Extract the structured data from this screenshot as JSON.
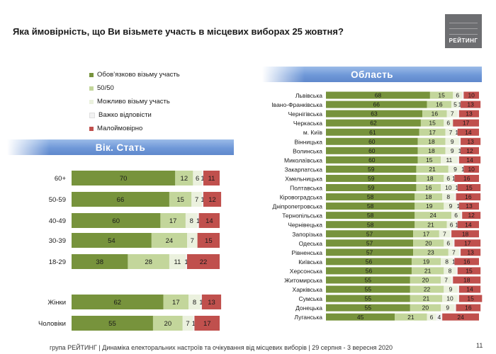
{
  "title": "Яка ймовірність, що Ви візьмете участь в місцевих виборах 25 жовтня?",
  "logo_text": "РЕЙТИНГ",
  "banner_left": "Вік. Стать",
  "banner_right": "Область",
  "footer": "група РЕЙТИНГ | Динаміка електоральних настроїв та очікування від місцевих виборів | 29 серпня - 3 вересня 2020",
  "page_number": "11",
  "colors": {
    "definitely": "#77933c",
    "fifty_fifty": "#c3d69b",
    "maybe": "#ebf1de",
    "hard_to_say": "#f2f2f2",
    "unlikely": "#c0504d"
  },
  "chart_data": [
    {
      "type": "bar",
      "orientation": "horizontal",
      "stacked": true,
      "percent_scale": true,
      "legend": [
        "Обов’язково візьму участь",
        "50/50",
        "Можливо візьму участь",
        "Важко відповісти",
        "Малоймовірно"
      ],
      "categories": [
        "60+",
        "50-59",
        "40-49",
        "30-39",
        "18-29",
        "Жінки",
        "Чоловіки"
      ],
      "series": [
        {
          "name": "Обов’язково візьму участь",
          "values": [
            70,
            66,
            60,
            54,
            38,
            62,
            55
          ]
        },
        {
          "name": "50/50",
          "values": [
            12,
            15,
            17,
            24,
            28,
            17,
            20
          ]
        },
        {
          "name": "Можливо візьму участь",
          "values": [
            6,
            7,
            8,
            7,
            11,
            8,
            7
          ]
        },
        {
          "name": "Важко відповісти",
          "values": [
            1,
            1,
            1,
            0,
            1,
            1,
            1
          ]
        },
        {
          "name": "Малоймовірно",
          "values": [
            11,
            12,
            14,
            15,
            22,
            13,
            17
          ]
        }
      ],
      "value_labels": [
        [
          "70",
          "12",
          "6",
          "1",
          "11"
        ],
        [
          "66",
          "15",
          "7",
          "1",
          "12"
        ],
        [
          "60",
          "17",
          "8",
          "1",
          "14"
        ],
        [
          "54",
          "24",
          "7",
          "",
          "15"
        ],
        [
          "38",
          "28",
          "11",
          "1",
          "22"
        ],
        [
          "62",
          "17",
          "8",
          "1",
          "13"
        ],
        [
          "55",
          "20",
          "7",
          "1",
          "17"
        ]
      ]
    },
    {
      "type": "bar",
      "orientation": "horizontal",
      "stacked": true,
      "percent_scale": true,
      "categories": [
        "Львівська",
        "Івано-Франківська",
        "Чернігівська",
        "Черкаська",
        "м. Київ",
        "Вінницька",
        "Волинська",
        "Миколаївська",
        "Закарпатська",
        "Хмельницька",
        "Полтавська",
        "Кіровоградська",
        "Дніпропетровська",
        "Тернопільська",
        "Чернівецька",
        "Запорізька",
        "Одеська",
        "Рівненська",
        "Київська",
        "Херсонська",
        "Житомирська",
        "Харківська",
        "Сумська",
        "Донецька",
        "Луганська"
      ],
      "series": [
        {
          "name": "Обов’язково візьму участь",
          "values": [
            68,
            66,
            63,
            62,
            61,
            60,
            60,
            60,
            59,
            59,
            59,
            58,
            58,
            58,
            58,
            57,
            57,
            57,
            56,
            56,
            55,
            55,
            55,
            55,
            45
          ]
        },
        {
          "name": "50/50",
          "values": [
            15,
            16,
            16,
            15,
            17,
            18,
            18,
            15,
            21,
            18,
            16,
            18,
            19,
            24,
            21,
            17,
            20,
            23,
            19,
            21,
            20,
            22,
            21,
            20,
            21
          ]
        },
        {
          "name": "Можливо візьму участь",
          "values": [
            6,
            5,
            7,
            6,
            7,
            9,
            9,
            11,
            9,
            6,
            10,
            8,
            9,
            6,
            6,
            7,
            6,
            7,
            8,
            8,
            7,
            9,
            10,
            9,
            6
          ]
        },
        {
          "name": "Важко відповісти",
          "values": [
            1,
            1,
            1,
            0,
            1,
            1,
            1,
            1,
            1,
            1,
            1,
            1,
            1,
            1,
            1,
            1,
            1,
            1,
            1,
            1,
            1,
            1,
            1,
            1,
            4
          ]
        },
        {
          "name": "Малоймовірно",
          "values": [
            10,
            13,
            13,
            17,
            14,
            13,
            12,
            14,
            10,
            16,
            15,
            16,
            13,
            12,
            14,
            18,
            17,
            13,
            16,
            15,
            18,
            14,
            15,
            16,
            24
          ]
        }
      ],
      "value_labels": [
        [
          "68",
          "15",
          "6",
          "",
          "10"
        ],
        [
          "66",
          "16",
          "5",
          "1",
          "13"
        ],
        [
          "63",
          "16",
          "7",
          "",
          "13"
        ],
        [
          "62",
          "15",
          "6",
          "",
          "17"
        ],
        [
          "61",
          "17",
          "7",
          "1",
          "14"
        ],
        [
          "60",
          "18",
          "9",
          "",
          "13"
        ],
        [
          "60",
          "18",
          "9",
          "1",
          "12"
        ],
        [
          "60",
          "15",
          "11",
          "",
          "14"
        ],
        [
          "59",
          "21",
          "9",
          "1",
          "10"
        ],
        [
          "59",
          "18",
          "6",
          "1",
          "16"
        ],
        [
          "59",
          "16",
          "10",
          "1",
          "15"
        ],
        [
          "58",
          "18",
          "8",
          "",
          "16"
        ],
        [
          "58",
          "19",
          "9",
          "1",
          "13"
        ],
        [
          "58",
          "24",
          "6",
          "",
          "12"
        ],
        [
          "58",
          "21",
          "6",
          "1",
          "14"
        ],
        [
          "57",
          "17",
          "7",
          "",
          "18"
        ],
        [
          "57",
          "20",
          "6",
          "",
          "17"
        ],
        [
          "57",
          "23",
          "7",
          "",
          "13"
        ],
        [
          "56",
          "19",
          "8",
          "1",
          "16"
        ],
        [
          "56",
          "21",
          "8",
          "",
          "15"
        ],
        [
          "55",
          "20",
          "7",
          "",
          "18"
        ],
        [
          "55",
          "22",
          "9",
          "",
          "14"
        ],
        [
          "55",
          "21",
          "10",
          "",
          "15"
        ],
        [
          "55",
          "20",
          "9",
          "",
          "16"
        ],
        [
          "45",
          "21",
          "6",
          "4",
          "24"
        ]
      ]
    }
  ]
}
